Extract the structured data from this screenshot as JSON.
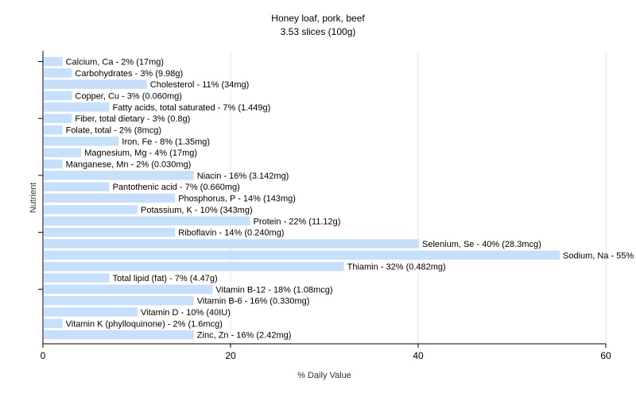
{
  "chart_data": {
    "type": "bar",
    "orientation": "horizontal",
    "title": "Honey loaf, pork, beef",
    "subtitle": "3.53 slices (100g)",
    "xlabel": "% Daily Value",
    "ylabel": "Nutrient",
    "xlim": [
      0,
      60
    ],
    "xticks": [
      "0",
      "20",
      "40",
      "60"
    ],
    "grid": true,
    "bar_color": "#c6dffb",
    "categories": [
      "Calcium, Ca - 2% (17mg)",
      "Carbohydrates - 3% (9.98g)",
      "Cholesterol - 11% (34mg)",
      "Copper, Cu - 3% (0.060mg)",
      "Fatty acids, total saturated - 7% (1.449g)",
      "Fiber, total dietary - 3% (0.8g)",
      "Folate, total - 2% (8mcg)",
      "Iron, Fe - 8% (1.35mg)",
      "Magnesium, Mg - 4% (17mg)",
      "Manganese, Mn - 2% (0.030mg)",
      "Niacin - 16% (3.142mg)",
      "Pantothenic acid - 7% (0.660mg)",
      "Phosphorus, P - 14% (143mg)",
      "Potassium, K - 10% (343mg)",
      "Protein - 22% (11.12g)",
      "Riboflavin - 14% (0.240mg)",
      "Selenium, Se - 40% (28.3mcg)",
      "Sodium, Na - 55% (1320mg)",
      "Thiamin - 32% (0.482mg)",
      "Total lipid (fat) - 7% (4.47g)",
      "Vitamin B-12 - 18% (1.08mcg)",
      "Vitamin B-6 - 16% (0.330mg)",
      "Vitamin D - 10% (40IU)",
      "Vitamin K (phylloquinone) - 2% (1.6mcg)",
      "Zinc, Zn - 16% (2.42mg)"
    ],
    "values": [
      2,
      3,
      11,
      3,
      7,
      3,
      2,
      8,
      4,
      2,
      16,
      7,
      14,
      10,
      22,
      14,
      40,
      55,
      32,
      7,
      18,
      16,
      10,
      2,
      16
    ]
  }
}
